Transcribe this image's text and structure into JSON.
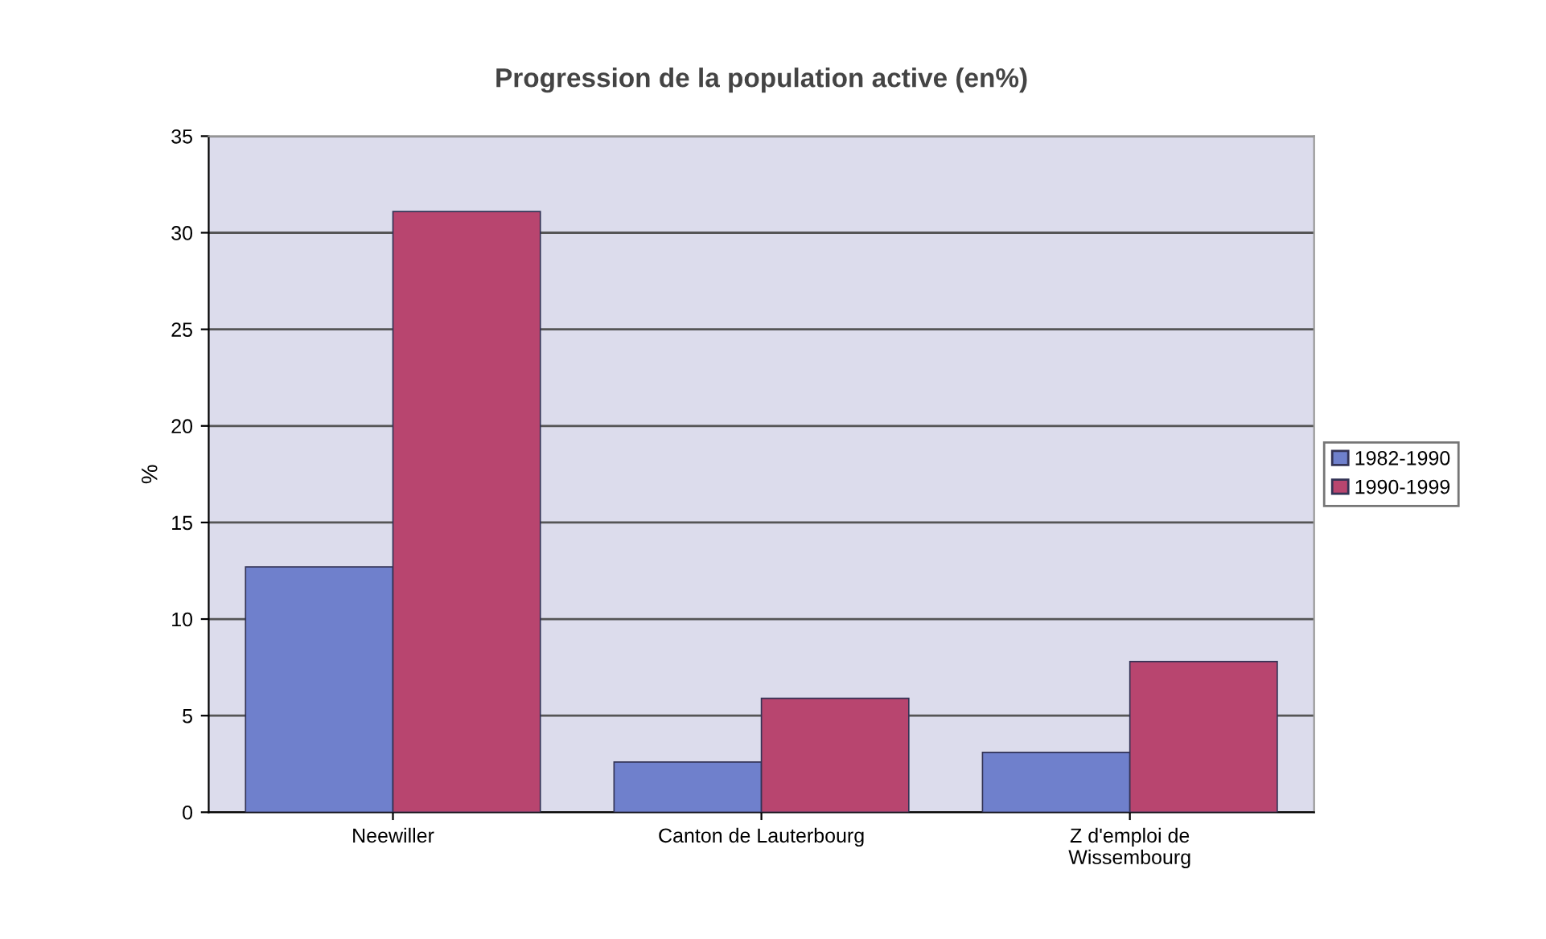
{
  "chart_data": {
    "type": "bar",
    "title": "Progression de la population active (en%)",
    "ylabel": "%",
    "categories": [
      "Neewiller",
      "Canton de Lauterbourg",
      "Z d'emploi de\nWissembourg"
    ],
    "series": [
      {
        "name": "1982-1990",
        "color": "#6f80cc",
        "values": [
          12.7,
          2.6,
          3.1
        ]
      },
      {
        "name": "1990-1999",
        "color": "#b8456f",
        "values": [
          31.1,
          5.9,
          7.8
        ]
      }
    ],
    "ylim": [
      0,
      35
    ],
    "yticks": [
      0,
      5,
      10,
      15,
      20,
      25,
      30,
      35
    ],
    "grid": "y",
    "legend": "right"
  }
}
